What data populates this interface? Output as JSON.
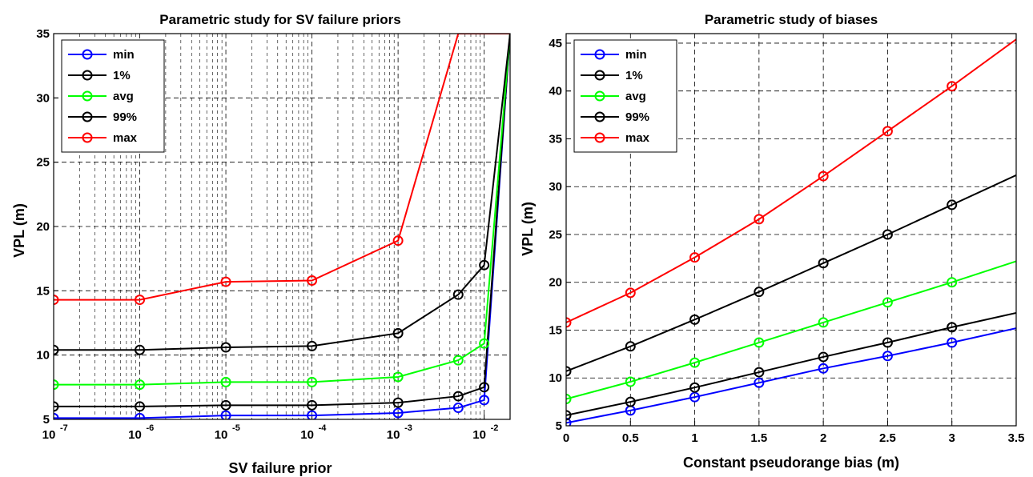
{
  "chart_data": [
    {
      "type": "line",
      "title": "Parametric study for SV failure priors",
      "xlabel": "SV failure prior",
      "ylabel": "VPL (m)",
      "xscale": "log",
      "xlim": [
        1e-07,
        0.02
      ],
      "ylim": [
        5,
        35
      ],
      "xticks": [
        1e-07,
        1e-06,
        1e-05,
        0.0001,
        0.001,
        0.01
      ],
      "xtick_labels": [
        {
          "base": "10",
          "exp": "-7"
        },
        {
          "base": "10",
          "exp": "-6"
        },
        {
          "base": "10",
          "exp": "-5"
        },
        {
          "base": "10",
          "exp": "-4"
        },
        {
          "base": "10",
          "exp": "-3"
        },
        {
          "base": "10",
          "exp": "-2"
        }
      ],
      "yticks": [
        5,
        10,
        15,
        20,
        25,
        30,
        35
      ],
      "grid": true,
      "legend": "top-left",
      "x": [
        1e-07,
        1e-06,
        1e-05,
        0.0001,
        0.001,
        0.005,
        0.01,
        0.02
      ],
      "series": [
        {
          "name": "min",
          "color": "#0000ff",
          "values": [
            5.1,
            5.1,
            5.3,
            5.3,
            5.5,
            5.9,
            6.5,
            35
          ]
        },
        {
          "name": "1%",
          "color": "#000000",
          "values": [
            6.0,
            6.0,
            6.1,
            6.1,
            6.3,
            6.8,
            7.5,
            35
          ]
        },
        {
          "name": "avg",
          "color": "#00ff00",
          "values": [
            7.7,
            7.7,
            7.9,
            7.9,
            8.3,
            9.6,
            10.9,
            35
          ]
        },
        {
          "name": "99%",
          "color": "#000000",
          "values": [
            10.4,
            10.4,
            10.6,
            10.7,
            11.7,
            14.7,
            17.0,
            35
          ]
        },
        {
          "name": "max",
          "color": "#ff0000",
          "values": [
            14.3,
            14.3,
            15.7,
            15.8,
            18.9,
            35.0,
            35.0,
            35
          ]
        }
      ]
    },
    {
      "type": "line",
      "title": "Parametric study of biases",
      "xlabel": "Constant pseudorange bias (m)",
      "ylabel": "VPL (m)",
      "xlim": [
        0,
        3.5
      ],
      "ylim": [
        5,
        46
      ],
      "xticks": [
        0,
        0.5,
        1,
        1.5,
        2,
        2.5,
        3,
        3.5
      ],
      "xtick_labels": [
        "0",
        "0.5",
        "1",
        "1.5",
        "2",
        "2.5",
        "3",
        "3.5"
      ],
      "yticks": [
        5,
        10,
        15,
        20,
        25,
        30,
        35,
        40,
        45
      ],
      "grid": true,
      "legend": "top-left",
      "x": [
        0,
        0.5,
        1,
        1.5,
        2,
        2.5,
        3,
        3.5
      ],
      "series": [
        {
          "name": "min",
          "color": "#0000ff",
          "values": [
            5.3,
            6.6,
            8.0,
            9.5,
            11.0,
            12.3,
            13.7,
            15.2
          ]
        },
        {
          "name": "1%",
          "color": "#000000",
          "values": [
            6.1,
            7.5,
            9.0,
            10.6,
            12.2,
            13.7,
            15.3,
            16.8
          ]
        },
        {
          "name": "avg",
          "color": "#00ff00",
          "values": [
            7.8,
            9.6,
            11.6,
            13.7,
            15.8,
            17.9,
            20.0,
            22.2
          ]
        },
        {
          "name": "99%",
          "color": "#000000",
          "values": [
            10.7,
            13.3,
            16.1,
            19.0,
            22.0,
            25.0,
            28.1,
            31.2
          ]
        },
        {
          "name": "max",
          "color": "#ff0000",
          "values": [
            15.8,
            18.9,
            22.6,
            26.6,
            31.1,
            35.8,
            40.5,
            45.4
          ]
        }
      ]
    }
  ]
}
